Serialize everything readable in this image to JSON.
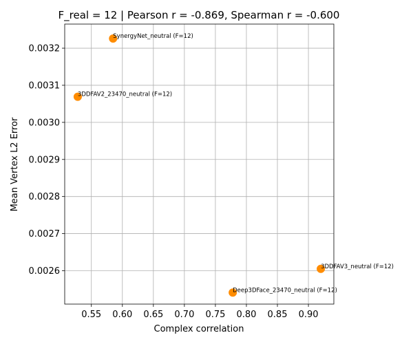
{
  "chart_data": {
    "type": "scatter",
    "title": "F_real = 12 | Pearson r = -0.869, Spearman r = -0.600",
    "xlabel": "Complex correlation",
    "ylabel": "Mean Vertex L2 Error",
    "xlim": [
      0.507,
      0.941
    ],
    "ylim": [
      0.00251,
      0.003265
    ],
    "xticks": [
      0.55,
      0.6,
      0.65,
      0.7,
      0.75,
      0.8,
      0.85,
      0.9
    ],
    "xtick_labels": [
      "0.55",
      "0.60",
      "0.65",
      "0.70",
      "0.75",
      "0.80",
      "0.85",
      "0.90"
    ],
    "yticks": [
      0.0026,
      0.0027,
      0.0028,
      0.0029,
      0.003,
      0.0031,
      0.0032
    ],
    "ytick_labels": [
      "0.0026",
      "0.0027",
      "0.0028",
      "0.0029",
      "0.0030",
      "0.0031",
      "0.0032"
    ],
    "grid": true,
    "point_color": "#ff8c00",
    "points": [
      {
        "label": "SynergyNet_neutral (F=12)",
        "x": 0.585,
        "y": 0.003226
      },
      {
        "label": "3DDFAV2_23470_neutral (F=12)",
        "x": 0.528,
        "y": 0.003069
      },
      {
        "label": "3DDFAV3_neutral (F=12)",
        "x": 0.92,
        "y": 0.002605
      },
      {
        "label": "Deep3DFace_23470_neutral (F=12)",
        "x": 0.778,
        "y": 0.002541
      }
    ]
  }
}
